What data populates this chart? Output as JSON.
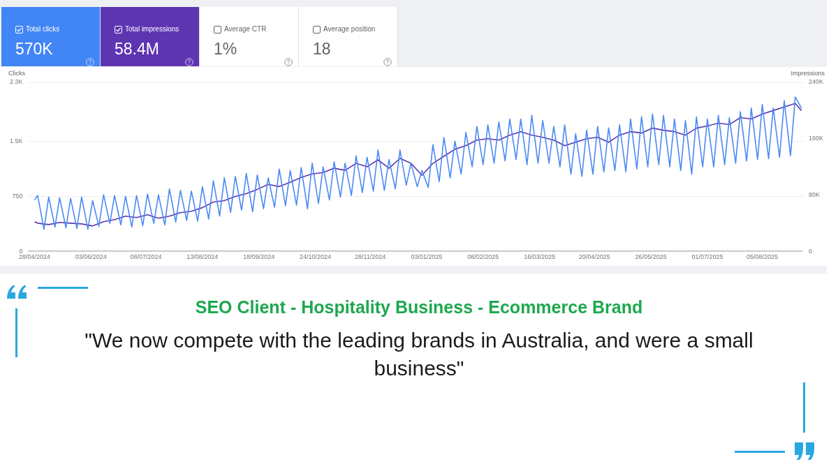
{
  "chart_data": [
    {
      "type": "other",
      "categories": [
        "Total clicks",
        "Total impressions",
        "Average CTR",
        "Average position"
      ],
      "value_labels": [
        "570K",
        "58.4M",
        "1%",
        "18"
      ],
      "colors": [
        "#4285f4",
        "#5e35b1",
        "#ffffff",
        "#ffffff"
      ]
    },
    {
      "type": "line",
      "title": "SEO Client - Hospitality Business - Ecommerce Brand",
      "subtitle": "\"We now compete with the leading brands in Australia, and were a small business\"",
      "ylabel": "Clicks",
      "y2label": "Impressions",
      "x": [
        "2024-04-28",
        "2024-04-30",
        "2024-05-04",
        "2024-05-07",
        "2024-05-11",
        "2024-05-14",
        "2024-05-18",
        "2024-05-21",
        "2024-05-25",
        "2024-05-28",
        "2024-06-01",
        "2024-06-04",
        "2024-06-08",
        "2024-06-11",
        "2024-06-15",
        "2024-06-18",
        "2024-06-22",
        "2024-06-25",
        "2024-06-29",
        "2024-07-02",
        "2024-07-06",
        "2024-07-09",
        "2024-07-13",
        "2024-07-16",
        "2024-07-20",
        "2024-07-23",
        "2024-07-27",
        "2024-07-30",
        "2024-08-03",
        "2024-08-06",
        "2024-08-10",
        "2024-08-13",
        "2024-08-17",
        "2024-08-20",
        "2024-08-24",
        "2024-08-27",
        "2024-08-31",
        "2024-09-03",
        "2024-09-07",
        "2024-09-10",
        "2024-09-14",
        "2024-09-17",
        "2024-09-21",
        "2024-09-24",
        "2024-09-28",
        "2024-10-01",
        "2024-10-05",
        "2024-10-08",
        "2024-10-12",
        "2024-10-15",
        "2024-10-19",
        "2024-10-22",
        "2024-10-26",
        "2024-10-29",
        "2024-11-02",
        "2024-11-05",
        "2024-11-09",
        "2024-11-12",
        "2024-11-16",
        "2024-11-19",
        "2024-11-23",
        "2024-11-26",
        "2024-11-30",
        "2024-12-03",
        "2024-12-07",
        "2024-12-10",
        "2024-12-14",
        "2024-12-17",
        "2024-12-21",
        "2024-12-24",
        "2024-12-28",
        "2024-12-31",
        "2025-01-04",
        "2025-01-07",
        "2025-01-11",
        "2025-01-14",
        "2025-01-18",
        "2025-01-21",
        "2025-01-25",
        "2025-01-28",
        "2025-02-01",
        "2025-02-04",
        "2025-02-08",
        "2025-02-11",
        "2025-02-15",
        "2025-02-18",
        "2025-02-22",
        "2025-02-25",
        "2025-03-01",
        "2025-03-04",
        "2025-03-08",
        "2025-03-11",
        "2025-03-15",
        "2025-03-18",
        "2025-03-22",
        "2025-03-25",
        "2025-03-29",
        "2025-04-01",
        "2025-04-05",
        "2025-04-08",
        "2025-04-12",
        "2025-04-15",
        "2025-04-19",
        "2025-04-22",
        "2025-04-26",
        "2025-04-29",
        "2025-05-03",
        "2025-05-06",
        "2025-05-10",
        "2025-05-13",
        "2025-05-17",
        "2025-05-20",
        "2025-05-24",
        "2025-05-27",
        "2025-05-31",
        "2025-06-03",
        "2025-06-07",
        "2025-06-10",
        "2025-06-14",
        "2025-06-17",
        "2025-06-21",
        "2025-06-24",
        "2025-06-28",
        "2025-07-01",
        "2025-07-05",
        "2025-07-08",
        "2025-07-12",
        "2025-07-15",
        "2025-07-19",
        "2025-07-22",
        "2025-07-26",
        "2025-07-29",
        "2025-08-02",
        "2025-08-05",
        "2025-08-09",
        "2025-08-12",
        "2025-08-16",
        "2025-08-19",
        "2025-08-23",
        "2025-08-26",
        "2025-08-30"
      ],
      "series": [
        {
          "color": "#4a8af4",
          "values": [
            700,
            760,
            300,
            740,
            330,
            730,
            320,
            720,
            310,
            740,
            300,
            690,
            340,
            770,
            380,
            760,
            360,
            750,
            330,
            760,
            350,
            780,
            380,
            770,
            360,
            850,
            400,
            830,
            420,
            820,
            410,
            880,
            440,
            960,
            480,
            1000,
            530,
            1020,
            560,
            1060,
            540,
            1040,
            580,
            1000,
            600,
            1120,
            620,
            1100,
            630,
            1140,
            580,
            1200,
            650,
            1150,
            700,
            1220,
            740,
            1200,
            760,
            1300,
            800,
            1280,
            820,
            1380,
            830,
            1250,
            850,
            1380,
            900,
            1200,
            880,
            1100,
            870,
            1450,
            950,
            1550,
            1000,
            1500,
            1050,
            1620,
            1150,
            1700,
            1180,
            1720,
            1200,
            1760,
            1230,
            1800,
            1250,
            1800,
            1180,
            1850,
            1200,
            1780,
            1200,
            1700,
            1150,
            1720,
            1050,
            1600,
            1020,
            1650,
            1050,
            1700,
            1080,
            1680,
            1100,
            1720,
            1080,
            1800,
            1120,
            1830,
            1150,
            1870,
            1180,
            1850,
            1150,
            1800,
            1100,
            1780,
            1050,
            1830,
            1150,
            1800,
            1150,
            1850,
            1180,
            1820,
            1200,
            1900,
            1230,
            1950,
            1250,
            2000,
            1260,
            1950,
            1280,
            2050,
            1300,
            2100,
            1950
          ]
        },
        {
          "color": "#5e35b1",
          "axis": "y2",
          "x": [
            "2024-04-28",
            "2024-04-30",
            "2024-05-07",
            "2024-05-14",
            "2024-05-21",
            "2024-05-28",
            "2024-06-04",
            "2024-06-11",
            "2024-06-18",
            "2024-06-25",
            "2024-07-02",
            "2024-07-09",
            "2024-07-16",
            "2024-07-23",
            "2024-07-30",
            "2024-08-06",
            "2024-08-13",
            "2024-08-20",
            "2024-08-27",
            "2024-09-03",
            "2024-09-10",
            "2024-09-17",
            "2024-09-24",
            "2024-10-01",
            "2024-10-08",
            "2024-10-15",
            "2024-10-22",
            "2024-10-29",
            "2024-11-05",
            "2024-11-12",
            "2024-11-19",
            "2024-11-26",
            "2024-12-03",
            "2024-12-10",
            "2024-12-17",
            "2024-12-24",
            "2024-12-31",
            "2025-01-07",
            "2025-01-14",
            "2025-01-21",
            "2025-01-28",
            "2025-02-04",
            "2025-02-11",
            "2025-02-18",
            "2025-02-25",
            "2025-03-04",
            "2025-03-11",
            "2025-03-18",
            "2025-03-25",
            "2025-04-01",
            "2025-04-08",
            "2025-04-15",
            "2025-04-22",
            "2025-04-29",
            "2025-05-06",
            "2025-05-13",
            "2025-05-20",
            "2025-05-27",
            "2025-06-03",
            "2025-06-10",
            "2025-06-17",
            "2025-06-24",
            "2025-07-01",
            "2025-07-08",
            "2025-07-15",
            "2025-07-22",
            "2025-07-29",
            "2025-08-05",
            "2025-08-12",
            "2025-08-19",
            "2025-08-26",
            "2025-08-30"
          ],
          "values": [
            42000,
            40000,
            38000,
            41000,
            40000,
            39000,
            36000,
            42000,
            45000,
            50000,
            48000,
            52000,
            47000,
            50000,
            55000,
            57000,
            62000,
            70000,
            72000,
            78000,
            82000,
            88000,
            95000,
            92000,
            98000,
            105000,
            110000,
            112000,
            118000,
            115000,
            125000,
            120000,
            130000,
            118000,
            132000,
            125000,
            108000,
            125000,
            135000,
            145000,
            150000,
            158000,
            160000,
            158000,
            165000,
            170000,
            165000,
            162000,
            158000,
            150000,
            155000,
            160000,
            162000,
            155000,
            165000,
            170000,
            168000,
            175000,
            172000,
            170000,
            165000,
            175000,
            178000,
            182000,
            180000,
            190000,
            188000,
            195000,
            200000,
            205000,
            210000,
            200000
          ]
        }
      ],
      "xlim": [
        "2024-04-24",
        "2025-08-31"
      ],
      "xticks": [
        {
          "value": "2024-04-28",
          "label": "28/04/2024"
        },
        {
          "value": "2024-06-03",
          "label": "03/06/2024"
        },
        {
          "value": "2024-07-08",
          "label": "08/07/2024"
        },
        {
          "value": "2024-08-13",
          "label": "13/08/2024"
        },
        {
          "value": "2024-09-18",
          "label": "18/09/2024"
        },
        {
          "value": "2024-10-24",
          "label": "24/10/2024"
        },
        {
          "value": "2024-11-28",
          "label": "28/11/2024"
        },
        {
          "value": "2025-01-03",
          "label": "03/01/2025"
        },
        {
          "value": "2025-02-08",
          "label": "08/02/2025"
        },
        {
          "value": "2025-03-16",
          "label": "16/03/2025"
        },
        {
          "value": "2025-04-20",
          "label": "20/04/2025"
        },
        {
          "value": "2025-05-26",
          "label": "26/05/2025"
        },
        {
          "value": "2025-07-01",
          "label": "01/07/2025"
        },
        {
          "value": "2025-08-05",
          "label": "05/08/2025"
        }
      ],
      "ylim": [
        0,
        2300
      ],
      "yticks": [
        0,
        750,
        {
          "value": 1500,
          "label": "1.5K"
        },
        {
          "value": 2300,
          "label": "2.3K"
        }
      ],
      "y2lim": [
        0,
        240000
      ],
      "y2ticks": [
        0,
        {
          "value": 80000,
          "label": "80K"
        },
        {
          "value": 160000,
          "label": "160K"
        },
        {
          "value": 240000,
          "label": "240K"
        }
      ],
      "grid": "y",
      "legend": false,
      "marker": "none",
      "line_style": "solid"
    }
  ]
}
